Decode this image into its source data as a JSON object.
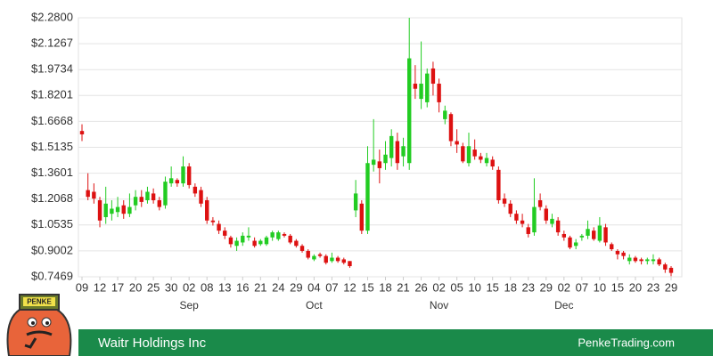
{
  "chart_data": {
    "type": "candlestick",
    "ylim": [
      0.7469,
      2.28
    ],
    "yticks": [
      {
        "value": 2.28,
        "label": "$2.2800"
      },
      {
        "value": 2.1267,
        "label": "$2.1267"
      },
      {
        "value": 1.9734,
        "label": "$1.9734"
      },
      {
        "value": 1.8201,
        "label": "$1.8201"
      },
      {
        "value": 1.6668,
        "label": "$1.6668"
      },
      {
        "value": 1.5135,
        "label": "$1.5135"
      },
      {
        "value": 1.3601,
        "label": "$1.3601"
      },
      {
        "value": 1.2068,
        "label": "$1.2068"
      },
      {
        "value": 1.0535,
        "label": "$1.0535"
      },
      {
        "value": 0.9002,
        "label": "$0.9002"
      },
      {
        "value": 0.7469,
        "label": "$0.7469"
      }
    ],
    "xlim": [
      0,
      99
    ],
    "xticks": [
      {
        "value": 0,
        "label": "09"
      },
      {
        "value": 3,
        "label": "12"
      },
      {
        "value": 6,
        "label": "17"
      },
      {
        "value": 9,
        "label": "20"
      },
      {
        "value": 12,
        "label": "25"
      },
      {
        "value": 15,
        "label": "30"
      },
      {
        "value": 18,
        "label": "02"
      },
      {
        "value": 21,
        "label": "08"
      },
      {
        "value": 24,
        "label": "13"
      },
      {
        "value": 27,
        "label": "16"
      },
      {
        "value": 30,
        "label": "21"
      },
      {
        "value": 33,
        "label": "24"
      },
      {
        "value": 36,
        "label": "29"
      },
      {
        "value": 39,
        "label": "04"
      },
      {
        "value": 42,
        "label": "07"
      },
      {
        "value": 45,
        "label": "12"
      },
      {
        "value": 48,
        "label": "15"
      },
      {
        "value": 51,
        "label": "18"
      },
      {
        "value": 54,
        "label": "21"
      },
      {
        "value": 57,
        "label": "26"
      },
      {
        "value": 60,
        "label": "02"
      },
      {
        "value": 63,
        "label": "05"
      },
      {
        "value": 66,
        "label": "10"
      },
      {
        "value": 69,
        "label": "15"
      },
      {
        "value": 72,
        "label": "18"
      },
      {
        "value": 75,
        "label": "23"
      },
      {
        "value": 78,
        "label": "29"
      },
      {
        "value": 81,
        "label": "02"
      },
      {
        "value": 84,
        "label": "07"
      },
      {
        "value": 87,
        "label": "10"
      },
      {
        "value": 90,
        "label": "15"
      },
      {
        "value": 93,
        "label": "20"
      },
      {
        "value": 96,
        "label": "23"
      },
      {
        "value": 99,
        "label": "29"
      }
    ],
    "month_ticks": [
      {
        "value": 18,
        "label": "Sep"
      },
      {
        "value": 39,
        "label": "Oct"
      },
      {
        "value": 60,
        "label": "Nov"
      },
      {
        "value": 81,
        "label": "Dec"
      }
    ],
    "grid": true,
    "up_color": "#22cc22",
    "down_color": "#dd1111",
    "open": [
      1.61,
      1.26,
      1.25,
      1.2,
      1.1,
      1.12,
      1.13,
      1.17,
      1.12,
      1.17,
      1.22,
      1.2,
      1.24,
      1.2,
      1.17,
      1.3,
      1.32,
      1.3,
      1.4,
      1.28,
      1.26,
      1.2,
      1.08,
      1.06,
      1.02,
      0.98,
      0.93,
      0.95,
      0.98,
      0.96,
      0.94,
      0.94,
      0.98,
      0.97,
      1.0,
      0.99,
      0.96,
      0.93,
      0.9,
      0.85,
      0.88,
      0.87,
      0.84,
      0.86,
      0.85,
      0.84,
      1.14,
      1.18,
      1.02,
      1.41,
      1.43,
      1.42,
      1.45,
      1.55,
      1.46,
      1.42,
      1.89,
      1.8,
      1.78,
      1.98,
      1.89,
      1.68,
      1.71,
      1.55,
      1.52,
      1.42,
      1.5,
      1.46,
      1.42,
      1.44,
      1.38,
      1.21,
      1.18,
      1.12,
      1.08,
      1.04,
      1.01,
      1.2,
      1.15,
      1.06,
      1.08,
      1.0,
      0.98,
      0.93,
      0.98,
      0.99,
      1.02,
      0.96,
      1.04,
      0.94,
      0.9,
      0.89,
      0.84,
      0.86,
      0.85,
      0.84,
      0.84,
      0.85,
      0.82,
      0.8
    ],
    "high": [
      1.65,
      1.36,
      1.3,
      1.22,
      1.28,
      1.2,
      1.22,
      1.2,
      1.24,
      1.26,
      1.26,
      1.28,
      1.27,
      1.22,
      1.34,
      1.4,
      1.33,
      1.46,
      1.42,
      1.3,
      1.28,
      1.22,
      1.1,
      1.08,
      1.04,
      0.99,
      0.98,
      1.01,
      1.04,
      0.98,
      0.97,
      0.99,
      1.02,
      1.02,
      1.01,
      1.0,
      0.97,
      0.94,
      0.91,
      0.88,
      0.89,
      0.88,
      0.89,
      0.87,
      0.86,
      0.84,
      1.32,
      1.2,
      1.52,
      1.68,
      1.5,
      1.55,
      1.62,
      1.6,
      1.57,
      2.28,
      2.0,
      2.14,
      1.98,
      2.02,
      1.92,
      1.76,
      1.72,
      1.62,
      1.54,
      1.6,
      1.56,
      1.48,
      1.48,
      1.46,
      1.4,
      1.24,
      1.2,
      1.14,
      1.12,
      1.06,
      1.33,
      1.24,
      1.17,
      1.12,
      1.1,
      1.02,
      0.99,
      0.97,
      1.0,
      1.08,
      1.04,
      1.1,
      1.06,
      0.95,
      0.91,
      0.9,
      0.88,
      0.87,
      0.86,
      0.86,
      0.88,
      0.86,
      0.83,
      0.81
    ],
    "low": [
      1.55,
      1.2,
      1.18,
      1.04,
      1.06,
      1.08,
      1.1,
      1.09,
      1.1,
      1.14,
      1.16,
      1.18,
      1.18,
      1.14,
      1.15,
      1.28,
      1.28,
      1.28,
      1.27,
      1.22,
      1.16,
      1.06,
      1.05,
      1.0,
      0.97,
      0.92,
      0.9,
      0.93,
      0.96,
      0.92,
      0.93,
      0.93,
      0.96,
      0.96,
      0.98,
      0.94,
      0.92,
      0.89,
      0.85,
      0.84,
      0.86,
      0.82,
      0.83,
      0.83,
      0.82,
      0.8,
      1.1,
      1.0,
      1.0,
      1.37,
      1.3,
      1.38,
      1.4,
      1.38,
      1.4,
      1.38,
      1.8,
      1.74,
      1.75,
      1.82,
      1.72,
      1.65,
      1.52,
      1.48,
      1.42,
      1.4,
      1.44,
      1.42,
      1.4,
      1.38,
      1.18,
      1.16,
      1.1,
      1.06,
      1.04,
      0.98,
      0.99,
      1.14,
      1.06,
      1.04,
      0.99,
      0.96,
      0.91,
      0.91,
      0.96,
      0.97,
      0.96,
      0.95,
      0.93,
      0.9,
      0.85,
      0.85,
      0.82,
      0.83,
      0.82,
      0.82,
      0.82,
      0.81,
      0.77,
      0.75
    ],
    "close": [
      1.59,
      1.22,
      1.21,
      1.08,
      1.18,
      1.15,
      1.16,
      1.12,
      1.16,
      1.22,
      1.19,
      1.25,
      1.2,
      1.16,
      1.31,
      1.33,
      1.3,
      1.4,
      1.29,
      1.24,
      1.18,
      1.08,
      1.07,
      1.02,
      0.99,
      0.94,
      0.96,
      0.99,
      0.99,
      0.93,
      0.96,
      0.98,
      1.01,
      1.01,
      0.99,
      0.95,
      0.93,
      0.9,
      0.86,
      0.87,
      0.87,
      0.83,
      0.86,
      0.84,
      0.83,
      0.81,
      1.24,
      1.02,
      1.42,
      1.44,
      1.39,
      1.47,
      1.58,
      1.42,
      1.52,
      2.04,
      1.86,
      1.89,
      1.95,
      1.89,
      1.78,
      1.73,
      1.55,
      1.53,
      1.43,
      1.52,
      1.46,
      1.44,
      1.45,
      1.4,
      1.2,
      1.18,
      1.12,
      1.08,
      1.06,
      1.0,
      1.16,
      1.16,
      1.08,
      1.09,
      1.01,
      0.98,
      0.92,
      0.95,
      0.99,
      1.03,
      0.97,
      1.05,
      0.95,
      0.91,
      0.88,
      0.87,
      0.86,
      0.84,
      0.84,
      0.85,
      0.85,
      0.82,
      0.79,
      0.77
    ]
  },
  "footer": {
    "company": "Waitr Holdings Inc",
    "site": "PenkeTrading.com",
    "logo_text": "PENKE"
  }
}
